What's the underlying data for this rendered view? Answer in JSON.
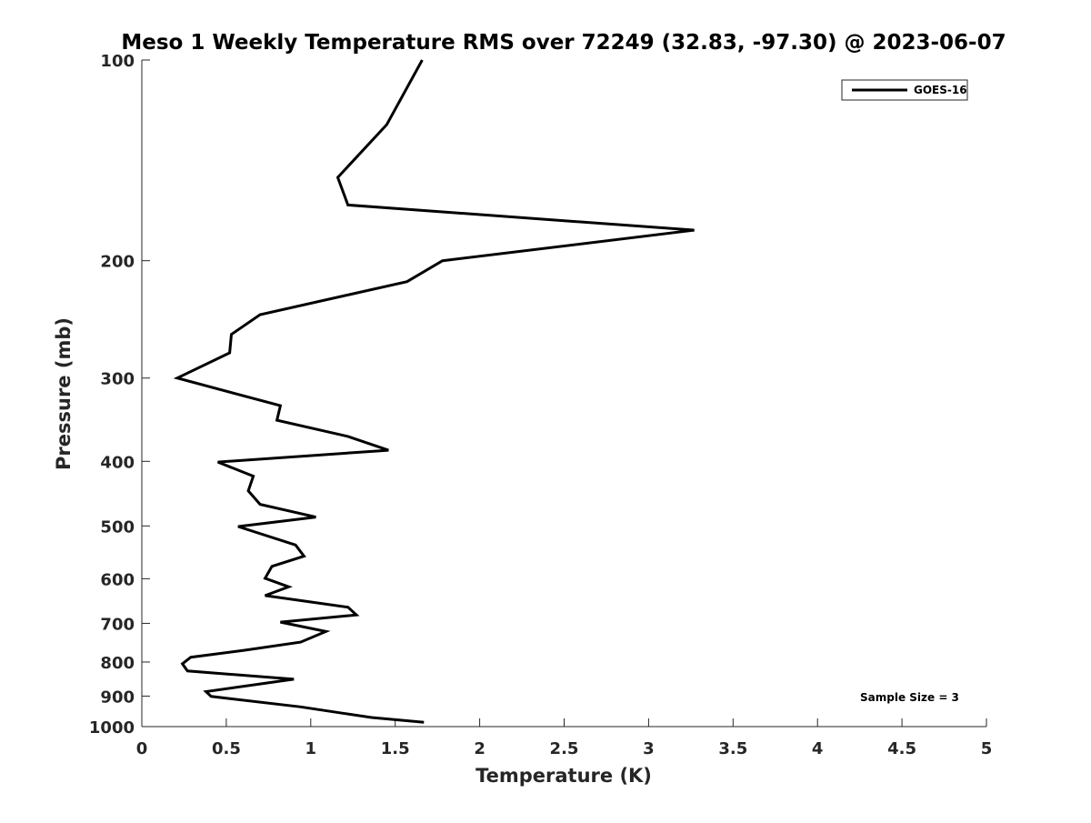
{
  "chart_data": {
    "type": "line",
    "title": "Meso 1 Weekly Temperature RMS over 72249 (32.83, -97.30) @ 2023-06-07",
    "xlabel": "Temperature (K)",
    "ylabel": "Pressure (mb)",
    "xlim": [
      0,
      5
    ],
    "ylim": [
      100,
      1000
    ],
    "y_scale": "log",
    "y_reversed": true,
    "x_ticks": [
      0,
      0.5,
      1,
      1.5,
      2,
      2.5,
      3,
      3.5,
      4,
      4.5,
      5
    ],
    "x_tick_labels": [
      "0",
      "0.5",
      "1",
      "1.5",
      "2",
      "2.5",
      "3",
      "3.5",
      "4",
      "4.5",
      "5"
    ],
    "y_ticks": [
      100,
      200,
      300,
      400,
      500,
      600,
      700,
      800,
      900,
      1000
    ],
    "y_tick_labels": [
      "100",
      "200",
      "300",
      "400",
      "500",
      "600",
      "700",
      "800",
      "900",
      "1000"
    ],
    "grid": false,
    "legend_position": "top-right",
    "annotation": "Sample Size = 3",
    "series": [
      {
        "name": "GOES-16",
        "color": "#000000",
        "points": [
          [
            1.66,
            100
          ],
          [
            1.45,
            125
          ],
          [
            1.16,
            150
          ],
          [
            1.22,
            165
          ],
          [
            3.27,
            180
          ],
          [
            1.78,
            200
          ],
          [
            1.57,
            215
          ],
          [
            0.7,
            241
          ],
          [
            0.53,
            258
          ],
          [
            0.52,
            275
          ],
          [
            0.21,
            300
          ],
          [
            0.82,
            330
          ],
          [
            0.8,
            347
          ],
          [
            1.22,
            367
          ],
          [
            1.46,
            385
          ],
          [
            0.45,
            401
          ],
          [
            0.66,
            421
          ],
          [
            0.63,
            443
          ],
          [
            0.7,
            464
          ],
          [
            1.03,
            485
          ],
          [
            0.57,
            501
          ],
          [
            0.91,
            534
          ],
          [
            0.96,
            555
          ],
          [
            0.77,
            575
          ],
          [
            0.73,
            599
          ],
          [
            0.87,
            617
          ],
          [
            0.73,
            636
          ],
          [
            1.22,
            662
          ],
          [
            1.27,
            680
          ],
          [
            0.82,
            697
          ],
          [
            1.09,
            720
          ],
          [
            0.94,
            747
          ],
          [
            0.61,
            768
          ],
          [
            0.29,
            787
          ],
          [
            0.24,
            805
          ],
          [
            0.27,
            825
          ],
          [
            0.9,
            849
          ],
          [
            0.38,
            886
          ],
          [
            0.41,
            901
          ],
          [
            0.94,
            934
          ],
          [
            1.19,
            955
          ],
          [
            1.36,
            969
          ],
          [
            1.67,
            985
          ]
        ]
      }
    ]
  }
}
